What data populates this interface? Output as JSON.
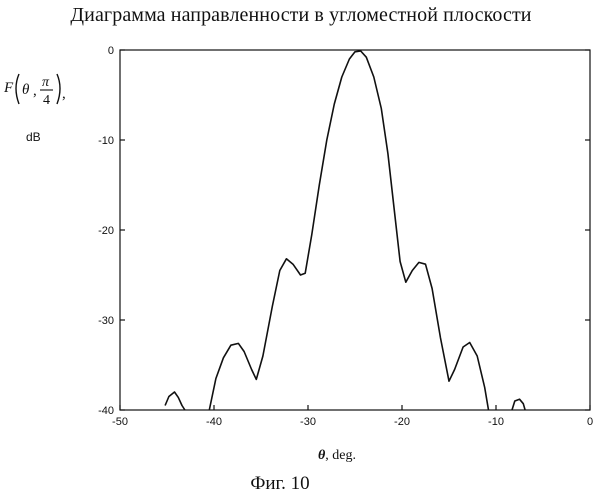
{
  "title": "Диаграмма направленности в угломестной плоскости",
  "caption": "Фиг. 10",
  "chart_data": {
    "type": "line",
    "title": "Диаграмма направленности в угломестной плоскости",
    "xlabel_symbol": "θ",
    "xlabel_unit": ", deg.",
    "ylabel_unit": "dB",
    "ylabel_func": "F",
    "ylabel_args_theta": "θ",
    "ylabel_args_pi": "π",
    "ylabel_args_den": "4",
    "xlim": [
      -50,
      0
    ],
    "ylim": [
      -40,
      0
    ],
    "x_ticks": [
      -50,
      -40,
      -30,
      -20,
      -10,
      0
    ],
    "x_tick_labels": [
      "-50",
      "-40",
      "-30",
      "-20",
      "-10",
      "0"
    ],
    "y_ticks": [
      0,
      -10,
      -20,
      -30,
      -40
    ],
    "y_tick_labels": [
      "0",
      "-10",
      "-20",
      "-30",
      "-40"
    ],
    "grid": false,
    "series": [
      {
        "segments": [
          [
            [
              -45.2,
              -39.5
            ],
            [
              -44.8,
              -38.5
            ],
            [
              -44.2,
              -38.0
            ],
            [
              -43.8,
              -38.6
            ],
            [
              -43.4,
              -39.5
            ],
            [
              -43.1,
              -40.0
            ]
          ],
          [
            [
              -40.5,
              -40.0
            ],
            [
              -39.8,
              -36.5
            ],
            [
              -39.0,
              -34.2
            ],
            [
              -38.2,
              -32.8
            ],
            [
              -37.4,
              -32.6
            ],
            [
              -36.8,
              -33.5
            ],
            [
              -36.0,
              -35.5
            ],
            [
              -35.5,
              -36.6
            ],
            [
              -34.8,
              -34.0
            ],
            [
              -33.8,
              -28.5
            ],
            [
              -33.0,
              -24.5
            ],
            [
              -32.3,
              -23.2
            ],
            [
              -31.6,
              -23.8
            ],
            [
              -30.8,
              -25.0
            ],
            [
              -30.3,
              -24.8
            ],
            [
              -29.6,
              -20.5
            ],
            [
              -28.8,
              -15.0
            ],
            [
              -28.0,
              -10.0
            ],
            [
              -27.2,
              -6.0
            ],
            [
              -26.4,
              -3.0
            ],
            [
              -25.6,
              -1.0
            ],
            [
              -25.0,
              -0.2
            ],
            [
              -24.4,
              -0.1
            ],
            [
              -23.8,
              -0.8
            ],
            [
              -23.0,
              -3.0
            ],
            [
              -22.2,
              -6.5
            ],
            [
              -21.5,
              -11.5
            ],
            [
              -20.8,
              -18.0
            ],
            [
              -20.2,
              -23.5
            ],
            [
              -19.6,
              -25.8
            ],
            [
              -18.9,
              -24.5
            ],
            [
              -18.2,
              -23.6
            ],
            [
              -17.5,
              -23.8
            ],
            [
              -16.8,
              -26.5
            ],
            [
              -15.9,
              -32.0
            ],
            [
              -15.0,
              -36.8
            ],
            [
              -14.4,
              -35.5
            ],
            [
              -13.5,
              -33.0
            ],
            [
              -12.8,
              -32.5
            ],
            [
              -12.0,
              -34.0
            ],
            [
              -11.2,
              -37.5
            ],
            [
              -10.8,
              -40.0
            ]
          ],
          [
            [
              -8.3,
              -40.0
            ],
            [
              -8.0,
              -39.0
            ],
            [
              -7.5,
              -38.8
            ],
            [
              -7.1,
              -39.3
            ],
            [
              -6.9,
              -40.0
            ]
          ]
        ]
      }
    ]
  }
}
